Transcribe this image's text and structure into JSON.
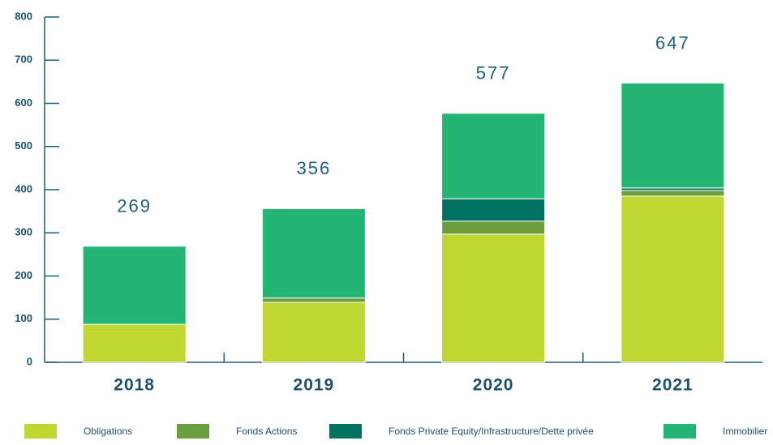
{
  "chart_data": {
    "type": "stacked_bar",
    "categories": [
      "2018",
      "2019",
      "2020",
      "2021"
    ],
    "series": [
      {
        "name": "Obligations",
        "color": "#bfd730",
        "values": [
          88,
          139,
          297,
          385
        ]
      },
      {
        "name": "Fonds Actions",
        "color": "#6a9e3f",
        "values": [
          0,
          10,
          30,
          13
        ]
      },
      {
        "name": "Fonds Private Equity/Infrastructure/Dette privée",
        "color": "#00725f",
        "values": [
          0,
          0,
          52,
          6
        ]
      },
      {
        "name": "Immobilier",
        "color": "#23b574",
        "values": [
          181,
          207,
          198,
          243
        ]
      }
    ],
    "totals": [
      269,
      356,
      577,
      647
    ],
    "ylim": [
      0,
      800
    ],
    "yticks": [
      0,
      100,
      200,
      300,
      400,
      500,
      600,
      700,
      800
    ],
    "legend": "bottom"
  }
}
